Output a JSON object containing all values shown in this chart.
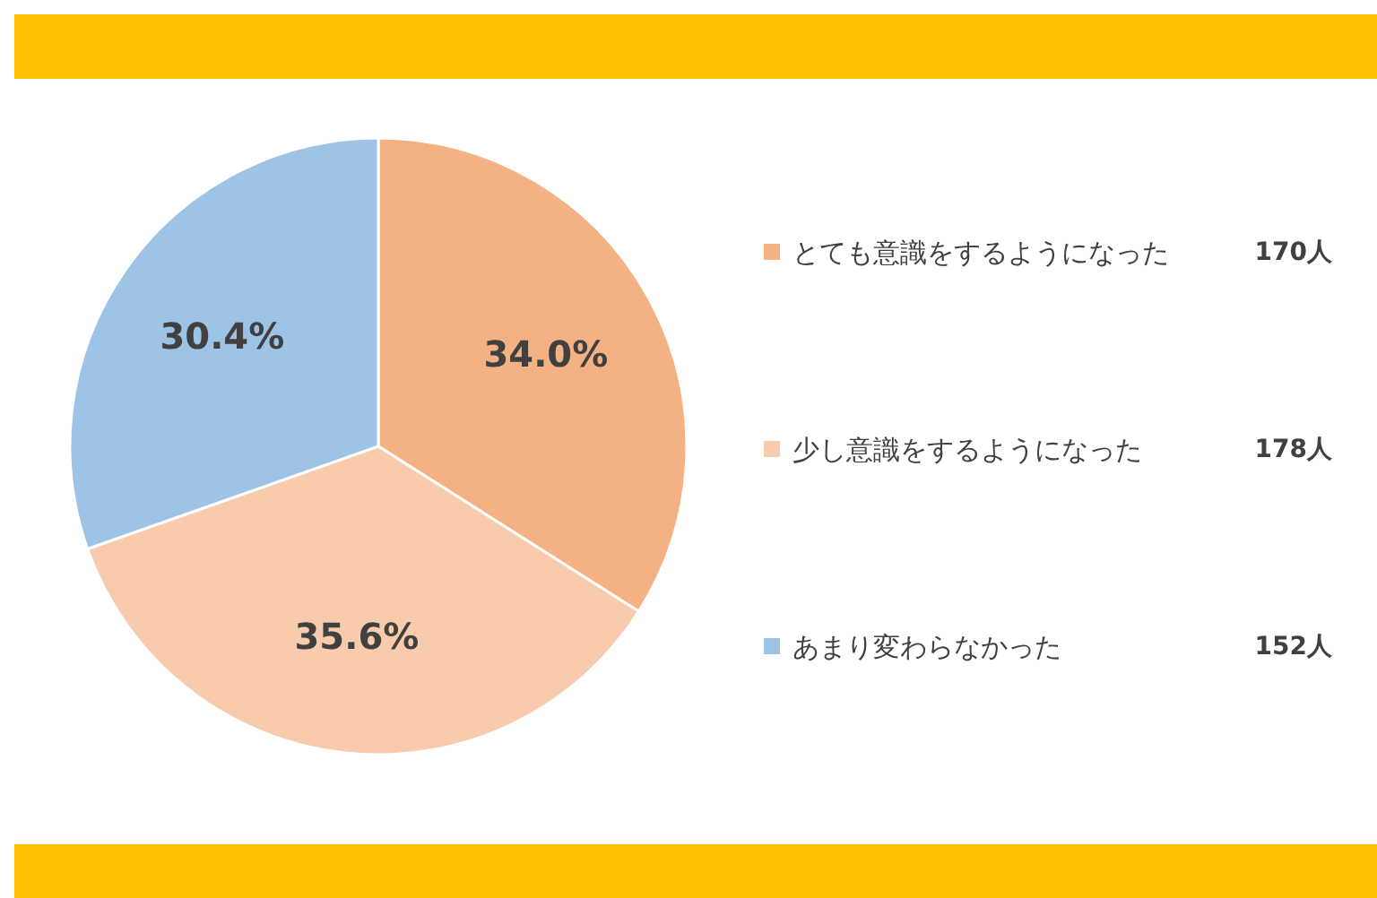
{
  "chart_data": {
    "type": "pie",
    "categories": [
      "とても意識をするようになった",
      "少し意識をするようになった",
      "あまり変わらなかった"
    ],
    "values": [
      34.0,
      35.6,
      30.4
    ],
    "value_labels": [
      "34.0%",
      "35.6%",
      "30.4%"
    ],
    "colors": [
      "#f4b183",
      "#f8cbad",
      "#9dc3e6"
    ],
    "annotations": [
      "170人",
      "178人",
      "152人"
    ],
    "legend": "right"
  }
}
